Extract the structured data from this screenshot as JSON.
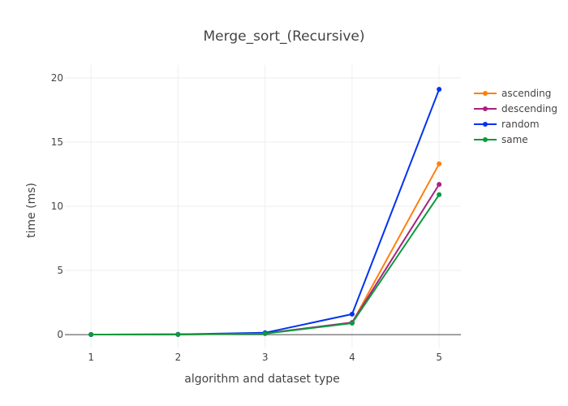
{
  "chart_data": {
    "type": "line",
    "title": "Merge_sort_(Recursive)",
    "xlabel": "algorithm and dataset type",
    "ylabel": "time (ms)",
    "x": [
      1,
      2,
      3,
      4,
      5
    ],
    "x_ticks": [
      "1",
      "2",
      "3",
      "4",
      "5"
    ],
    "y_ticks": [
      "0",
      "5",
      "10",
      "15",
      "20"
    ],
    "xlim": [
      0.7,
      5.25
    ],
    "ylim": [
      -1,
      21
    ],
    "grid": true,
    "legend_position": "top-right",
    "series": [
      {
        "name": "ascending",
        "color": "#ff7f0e",
        "values": [
          0.01,
          0.02,
          0.1,
          0.92,
          13.3
        ]
      },
      {
        "name": "descending",
        "color": "#a8227f",
        "values": [
          0.01,
          0.02,
          0.1,
          0.95,
          11.7
        ]
      },
      {
        "name": "random",
        "color": "#0033ee",
        "values": [
          0.01,
          0.03,
          0.15,
          1.6,
          19.1
        ]
      },
      {
        "name": "same",
        "color": "#0a9a3c",
        "values": [
          0.01,
          0.02,
          0.08,
          0.9,
          10.9
        ]
      }
    ]
  }
}
